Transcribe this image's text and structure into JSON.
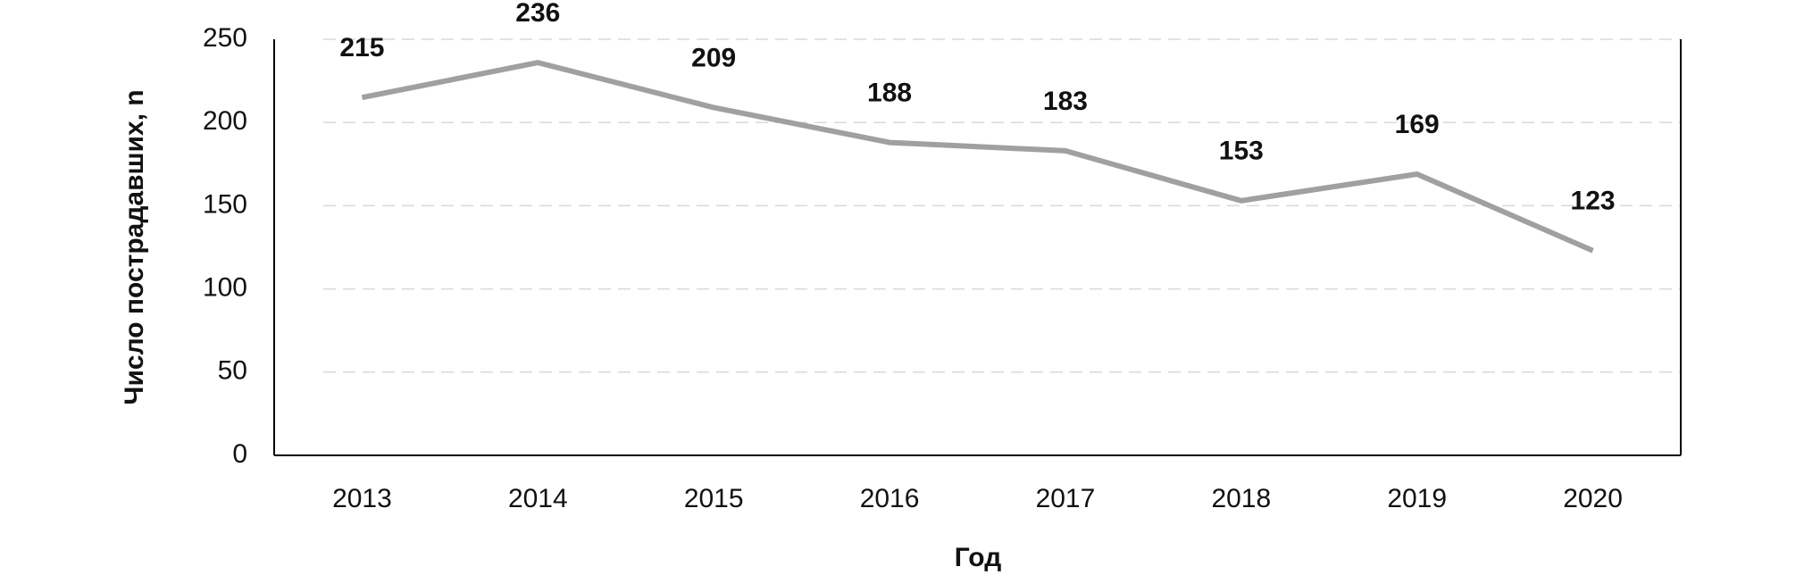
{
  "chart_data": {
    "type": "line",
    "x_label": "Год",
    "y_label": "Число пострадавших, n",
    "categories": [
      "2013",
      "2014",
      "2015",
      "2016",
      "2017",
      "2018",
      "2019",
      "2020"
    ],
    "series": [
      {
        "name": "Число пострадавших",
        "color": "#a0a0a0",
        "values": [
          215,
          236,
          209,
          188,
          183,
          153,
          169,
          123
        ]
      }
    ],
    "ylim": [
      0,
      250
    ],
    "yticks": [
      0,
      50,
      100,
      150,
      200,
      250
    ],
    "grid": true
  }
}
